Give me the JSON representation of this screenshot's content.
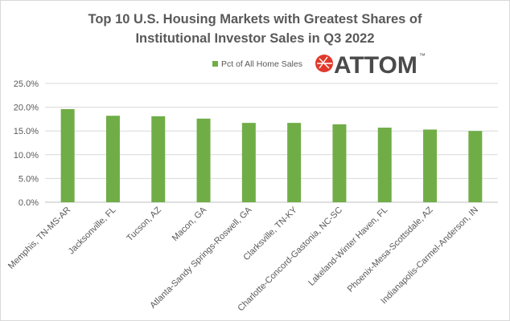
{
  "chart_data": {
    "type": "bar",
    "title": "Top 10 U.S. Housing Markets with Greatest Shares of Institutional Investor Sales in Q3 2022",
    "title_lines": [
      "Top 10 U.S. Housing Markets with Greatest Shares of",
      "Institutional Investor Sales in Q3 2022"
    ],
    "categories": [
      "Memphis, TN-MS-AR",
      "Jacksonville, FL",
      "Tucson, AZ",
      "Macon, GA",
      "Atlanta-Sandy Springs-Roswell, GA",
      "Clarksville, TN-KY",
      "Charlotte-Concord-Gastonia, NC-SC",
      "Lakeland-Winter Haven, FL",
      "Phoenix-Mesa-Scottsdale, AZ",
      "Indianapolis-Carmel-Anderson, IN"
    ],
    "series": [
      {
        "name": "Pct of All Home Sales",
        "values": [
          19.6,
          18.2,
          18.1,
          17.6,
          16.7,
          16.7,
          16.4,
          15.7,
          15.3,
          15.0
        ],
        "color": "#70ad47"
      }
    ],
    "xlabel": "",
    "ylabel": "",
    "ylim": [
      0,
      25
    ],
    "yticks": [
      "0.0%",
      "5.0%",
      "10.0%",
      "15.0%",
      "20.0%",
      "25.0%"
    ],
    "grid": true,
    "legend": "top-center"
  },
  "logo": {
    "text": "ATTOM",
    "tm": "™",
    "color": "#e0392b"
  }
}
